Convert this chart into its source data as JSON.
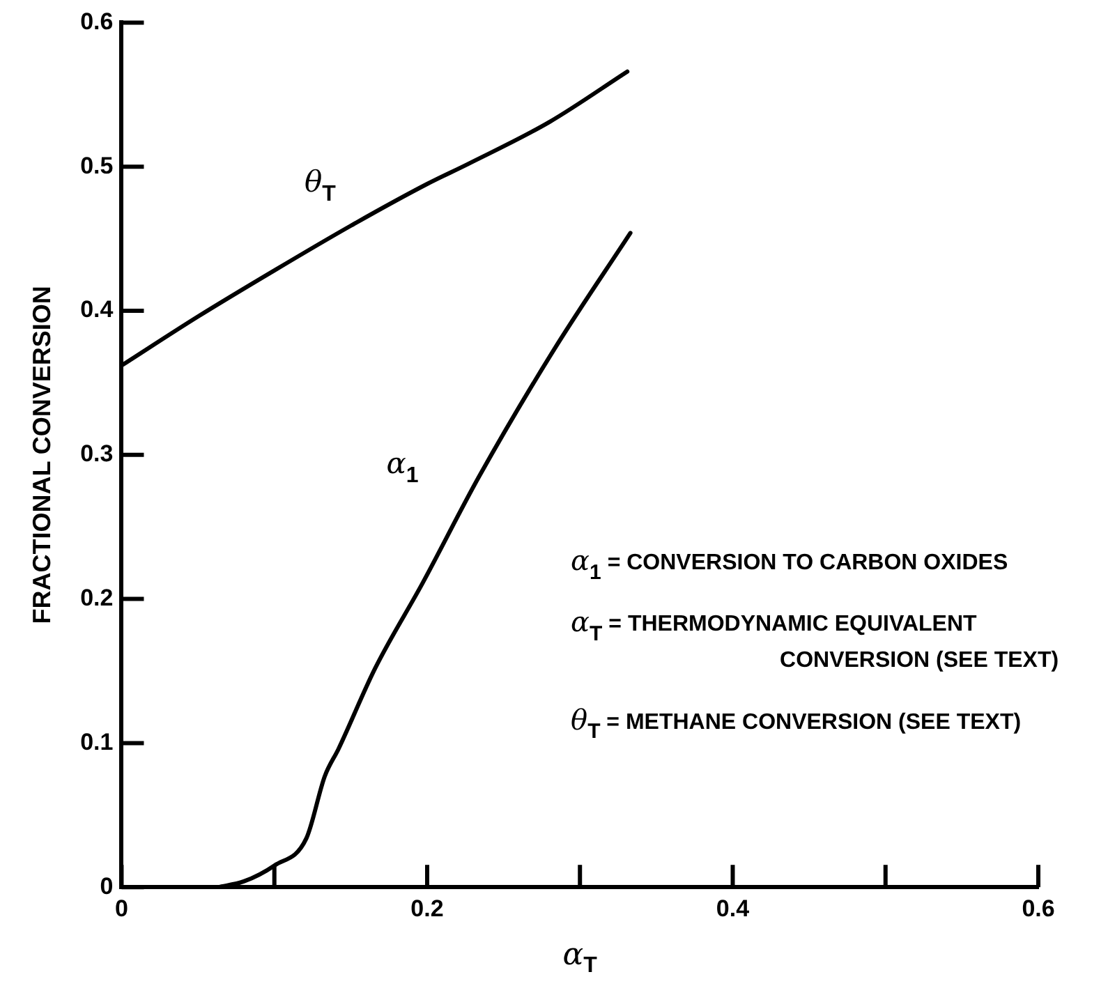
{
  "chart_data": {
    "type": "line",
    "xlabel": "α$_{T}$",
    "ylabel": "FRACTIONAL CONVERSION",
    "xlim": [
      0,
      0.6
    ],
    "ylim": [
      0,
      0.6
    ],
    "xticks": [
      0,
      {
        "value": 0.1,
        "label": null
      },
      0.2,
      {
        "value": 0.3,
        "label": null
      },
      0.4,
      {
        "value": 0.5,
        "label": null
      },
      0.6
    ],
    "yticks": [
      0,
      0.1,
      0.2,
      0.3,
      0.4,
      0.5,
      0.6
    ],
    "marker": "none",
    "line_style": "solid",
    "legend": false,
    "grid": false,
    "series": [
      {
        "name": "θ$_{T}$",
        "color": "#000000",
        "x": [
          0,
          0.05,
          0.1,
          0.15,
          0.2,
          0.227,
          0.28,
          0.331
        ],
        "values": [
          0.362,
          0.396,
          0.428,
          0.459,
          0.488,
          0.502,
          0.531,
          0.566
        ]
      },
      {
        "name": "α$_{1}$",
        "color": "#000000",
        "x": [
          0.063,
          0.08,
          0.1,
          0.121,
          0.133,
          0.142,
          0.166,
          0.197,
          0.234,
          0.283,
          0.333
        ],
        "values": [
          0,
          0.004,
          0.015,
          0.034,
          0.077,
          0.096,
          0.152,
          0.211,
          0.285,
          0.373,
          0.454
        ]
      }
    ],
    "annotations": [
      "α$_{1}$ = CONVERSION TO CARBON OXIDES",
      "α$_{T}$ = THERMODYNAMIC EQUIVALENT\nCONVERSION (SEE TEXT)",
      "θ$_{T}$ = METHANE CONVERSION (SEE TEXT)"
    ]
  }
}
